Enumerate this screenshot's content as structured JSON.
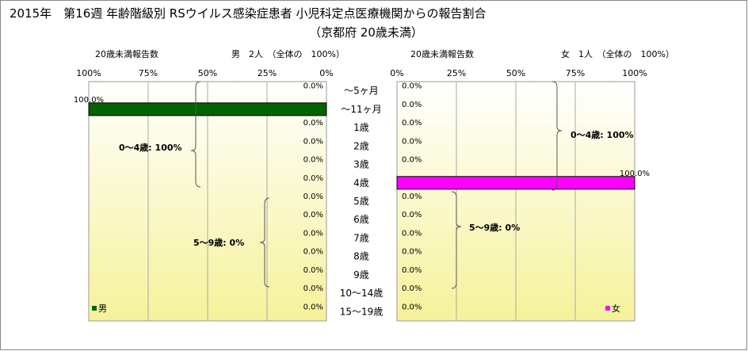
{
  "title_line1": "2015年　第16週 年齢階級別 RSウイルス感染症患者 小児科定点医療機関からの報告割合",
  "title_line2": "（京都府 20歳未満）",
  "categories": [
    "～5ヶ月",
    "～11ヶ月",
    "1歳",
    "2歳",
    "3歳",
    "4歳",
    "5歳",
    "6歳",
    "7歳",
    "8歳",
    "9歳",
    "10～14歳",
    "15～19歳"
  ],
  "male": {
    "header_left": "20歳未満報告数",
    "header_right": "男　2人　（全体の　100%）",
    "legend": "男",
    "color": "#006400",
    "ticks": [
      "100%",
      "75%",
      "50%",
      "25%",
      "0%"
    ],
    "values": [
      0,
      100,
      0,
      0,
      0,
      0,
      0,
      0,
      0,
      0,
      0,
      0,
      0
    ],
    "labels": [
      "0.0%",
      "100.0%",
      "0.0%",
      "0.0%",
      "0.0%",
      "0.0%",
      "0.0%",
      "0.0%",
      "0.0%",
      "0.0%",
      "0.0%",
      "0.0%",
      "0.0%"
    ],
    "bracket_0_4": "0～4歳: 100%",
    "bracket_5_9": "5～9歳: 0%"
  },
  "female": {
    "header_left": "20歳未満報告数",
    "header_right": "女　1人　（全体の　100%）",
    "legend": "女",
    "color": "#ff00ff",
    "ticks": [
      "0%",
      "25%",
      "50%",
      "75%",
      "100%"
    ],
    "values": [
      0,
      0,
      0,
      0,
      0,
      100,
      0,
      0,
      0,
      0,
      0,
      0,
      0
    ],
    "labels": [
      "0.0%",
      "0.0%",
      "0.0%",
      "0.0%",
      "0.0%",
      "100.0%",
      "0.0%",
      "0.0%",
      "0.0%",
      "0.0%",
      "0.0%",
      "0.0%",
      "0.0%"
    ],
    "bracket_0_4": "0～4歳: 100%",
    "bracket_5_9": "5～9歳: 0%"
  },
  "chart_data": [
    {
      "type": "bar",
      "orientation": "horizontal",
      "categories": [
        "～5ヶ月",
        "～11ヶ月",
        "1歳",
        "2歳",
        "3歳",
        "4歳",
        "5歳",
        "6歳",
        "7歳",
        "8歳",
        "9歳",
        "10～14歳",
        "15～19歳"
      ],
      "series": [
        {
          "name": "男",
          "values": [
            0,
            100,
            0,
            0,
            0,
            0,
            0,
            0,
            0,
            0,
            0,
            0,
            0
          ]
        }
      ],
      "xlim": [
        0,
        100
      ],
      "x_reversed": true
    },
    {
      "type": "bar",
      "orientation": "horizontal",
      "categories": [
        "～5ヶ月",
        "～11ヶ月",
        "1歳",
        "2歳",
        "3歳",
        "4歳",
        "5歳",
        "6歳",
        "7歳",
        "8歳",
        "9歳",
        "10～14歳",
        "15～19歳"
      ],
      "series": [
        {
          "name": "女",
          "values": [
            0,
            0,
            0,
            0,
            0,
            100,
            0,
            0,
            0,
            0,
            0,
            0,
            0
          ]
        }
      ],
      "xlim": [
        0,
        100
      ]
    }
  ]
}
